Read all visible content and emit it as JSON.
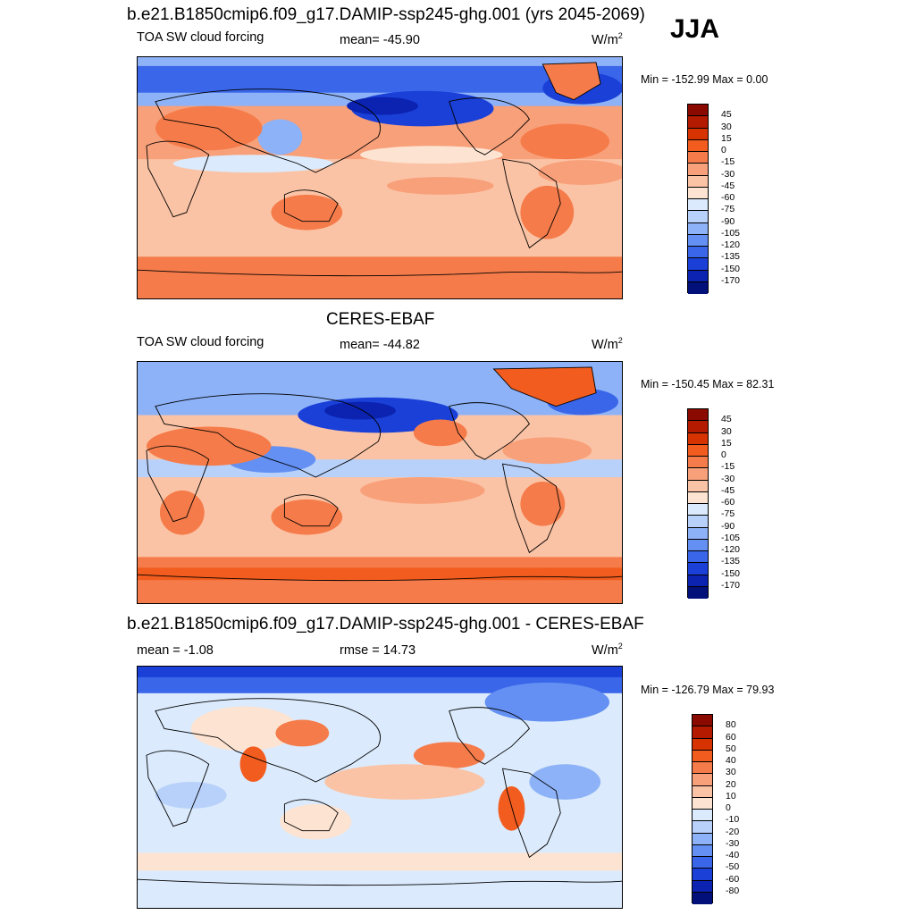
{
  "season": "JJA",
  "panels": [
    {
      "title": "b.e21.B1850cmip6.f09_g17.DAMIP-ssp245-ghg.001 (yrs 2045-2069)",
      "left_label": "TOA SW cloud forcing",
      "center_label": "mean= -45.90",
      "unit_base": "W/m",
      "unit_exp": "2",
      "minmax": "Min = -152.99 Max =   0.00",
      "colorbar_labels": [
        "45",
        "30",
        "15",
        "0",
        "-15",
        "-30",
        "-45",
        "-60",
        "-75",
        "-90",
        "-105",
        "-120",
        "-135",
        "-150",
        "-170"
      ]
    },
    {
      "title": "CERES-EBAF",
      "left_label": "TOA SW cloud forcing",
      "center_label": "mean= -44.82",
      "unit_base": "W/m",
      "unit_exp": "2",
      "minmax": "Min = -150.45 Max =  82.31",
      "colorbar_labels": [
        "45",
        "30",
        "15",
        "0",
        "-15",
        "-30",
        "-45",
        "-60",
        "-75",
        "-90",
        "-105",
        "-120",
        "-135",
        "-150",
        "-170"
      ]
    },
    {
      "title": "b.e21.B1850cmip6.f09_g17.DAMIP-ssp245-ghg.001 - CERES-EBAF",
      "left_label": "mean =  -1.08",
      "center_label": "rmse =  14.73",
      "unit_base": "W/m",
      "unit_exp": "2",
      "minmax": "Min = -126.79 Max =  79.93",
      "colorbar_labels": [
        "80",
        "60",
        "50",
        "40",
        "30",
        "20",
        "10",
        "0",
        "-10",
        "-20",
        "-30",
        "-40",
        "-50",
        "-60",
        "-80"
      ]
    }
  ],
  "colors": {
    "abs_scale": [
      "#8b0a00",
      "#b31a00",
      "#d63300",
      "#f25c1e",
      "#f57c4a",
      "#f8a07a",
      "#fbc3a5",
      "#fde4d2",
      "#dbeafc",
      "#b8d1fa",
      "#8db2f7",
      "#6390f2",
      "#3a66ea",
      "#1a40d8",
      "#0b23b0",
      "#02107a"
    ],
    "diff_scale": [
      "#8b0a00",
      "#b31a00",
      "#d63300",
      "#f25c1e",
      "#f57c4a",
      "#f8a07a",
      "#fbc3a5",
      "#fde4d2",
      "#dbeafc",
      "#b8d1fa",
      "#8db2f7",
      "#6390f2",
      "#3a66ea",
      "#1a40d8",
      "#0b23b0",
      "#02107a"
    ]
  }
}
